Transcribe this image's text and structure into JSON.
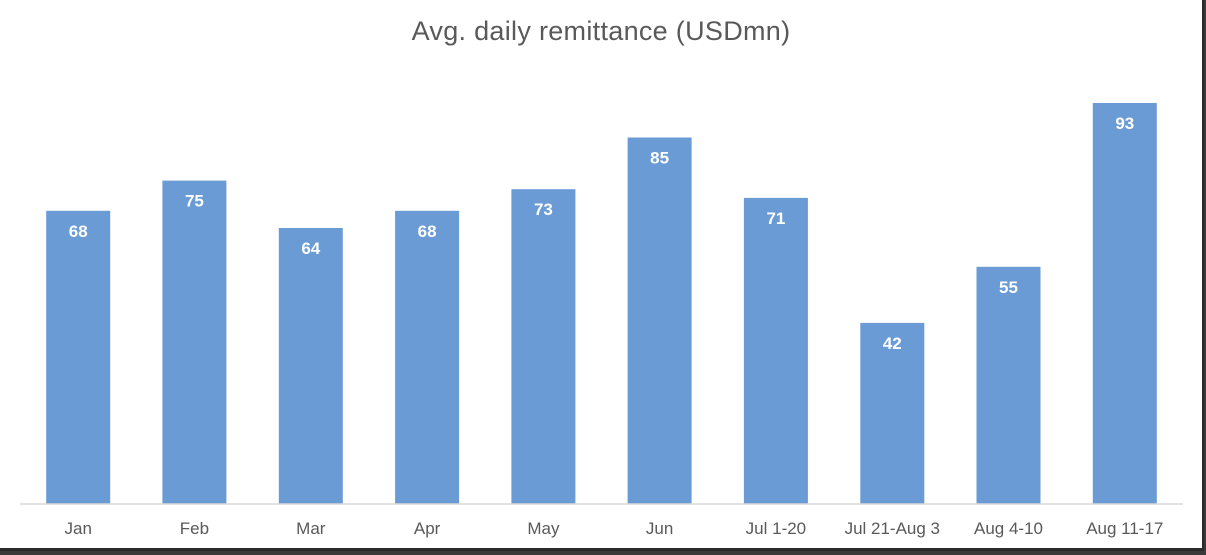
{
  "chart_data": {
    "type": "bar",
    "title": "Avg. daily remittance (USDmn)",
    "categories": [
      "Jan",
      "Feb",
      "Mar",
      "Apr",
      "May",
      "Jun",
      "Jul 1-20",
      "Jul 21-Aug 3",
      "Aug 4-10",
      "Aug 11-17"
    ],
    "values": [
      68,
      75,
      64,
      68,
      73,
      85,
      71,
      42,
      55,
      93
    ],
    "xlabel": "",
    "ylabel": "",
    "ylim": [
      0,
      93
    ],
    "grid": false,
    "legend": "none",
    "data_labels": true,
    "colors": {
      "bar": "#6a9bd5",
      "label": "#ffffff",
      "axis": "#d9d9d9",
      "text": "#595959"
    }
  }
}
